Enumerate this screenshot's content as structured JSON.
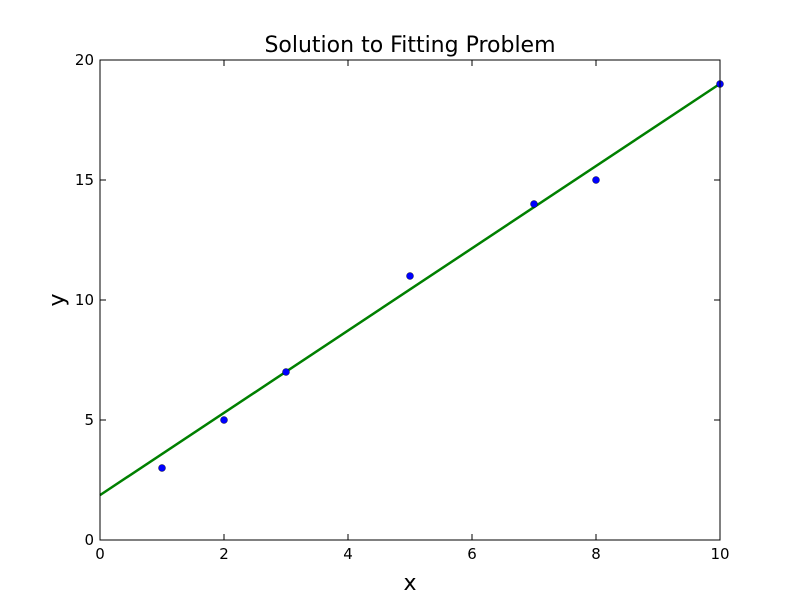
{
  "chart_data": {
    "type": "scatter",
    "title": "Solution to Fitting Problem",
    "xlabel": "x",
    "ylabel": "y",
    "xlim": [
      0,
      10
    ],
    "ylim": [
      0,
      20
    ],
    "xticks": [
      "0",
      "2",
      "4",
      "6",
      "8",
      "10"
    ],
    "yticks": [
      "0",
      "5",
      "10",
      "15",
      "20"
    ],
    "grid": false,
    "legend": "none",
    "series": [
      {
        "kind": "scatter",
        "color": "#0000ff",
        "points": [
          [
            1,
            3
          ],
          [
            2,
            5
          ],
          [
            3,
            7
          ],
          [
            5,
            11
          ],
          [
            7,
            14
          ],
          [
            8,
            15
          ],
          [
            10,
            19
          ]
        ]
      },
      {
        "kind": "line",
        "color": "#008000",
        "points": [
          [
            0,
            1.87
          ],
          [
            10,
            19.01
          ]
        ]
      }
    ]
  }
}
